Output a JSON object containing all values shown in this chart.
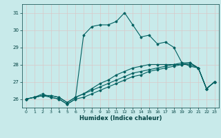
{
  "xlabel": "Humidex (Indice chaleur)",
  "ylabel": "",
  "bg_color": "#c8eaea",
  "grid_color": "#d8c8c8",
  "line_color": "#006060",
  "xlim": [
    -0.5,
    23.5
  ],
  "ylim": [
    25.5,
    31.5
  ],
  "yticks": [
    26,
    27,
    28,
    29,
    30,
    31
  ],
  "xticks": [
    0,
    1,
    2,
    3,
    4,
    5,
    6,
    7,
    8,
    9,
    10,
    11,
    12,
    13,
    14,
    15,
    16,
    17,
    18,
    19,
    20,
    21,
    22,
    23
  ],
  "series": [
    [
      26.0,
      26.1,
      26.3,
      26.1,
      26.0,
      25.7,
      26.0,
      29.7,
      30.2,
      30.3,
      30.3,
      30.5,
      31.0,
      30.3,
      29.6,
      29.7,
      29.2,
      29.3,
      29.0,
      28.1,
      27.9,
      27.8,
      26.6,
      27.0
    ],
    [
      26.0,
      26.1,
      26.2,
      26.1,
      26.0,
      25.7,
      26.0,
      26.1,
      26.3,
      26.5,
      26.7,
      26.9,
      27.1,
      27.3,
      27.4,
      27.6,
      27.7,
      27.8,
      27.9,
      28.0,
      28.1,
      27.8,
      26.6,
      27.0
    ],
    [
      26.0,
      26.1,
      26.2,
      26.2,
      26.1,
      25.8,
      26.1,
      26.3,
      26.5,
      26.7,
      26.9,
      27.1,
      27.3,
      27.5,
      27.6,
      27.7,
      27.8,
      27.9,
      28.0,
      28.1,
      28.1,
      27.8,
      26.6,
      27.0
    ],
    [
      26.0,
      26.1,
      26.2,
      26.2,
      26.1,
      25.8,
      26.1,
      26.3,
      26.6,
      26.9,
      27.1,
      27.4,
      27.6,
      27.8,
      27.9,
      28.0,
      28.0,
      28.0,
      28.0,
      28.0,
      28.0,
      27.8,
      26.6,
      27.0
    ]
  ]
}
